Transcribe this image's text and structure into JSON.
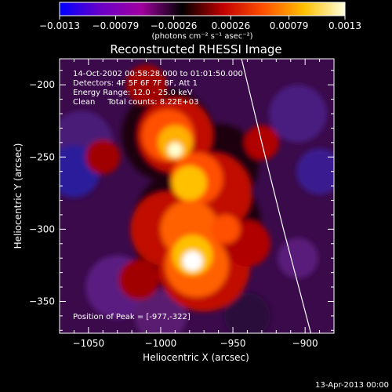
{
  "chart_data": {
    "type": "heatmap",
    "title": "Reconstructed RHESSI Image",
    "xlabel": "Heliocentric X (arcsec)",
    "ylabel": "Heliocentric Y (arcsec)",
    "xlim": [
      -1070,
      -880
    ],
    "ylim": [
      -372,
      -182
    ],
    "x_ticks": [
      -1050,
      -1000,
      -950,
      -900
    ],
    "y_ticks": [
      -200,
      -250,
      -300,
      -350
    ],
    "x_tick_labels": [
      "−1050",
      "−1000",
      "−950",
      "−900"
    ],
    "y_tick_labels": [
      "−200",
      "−250",
      "−300",
      "−350"
    ],
    "colorbar": {
      "range": [
        -0.0013,
        0.0013
      ],
      "ticks": [
        -0.0013,
        -0.00079,
        -0.00026,
        0.00026,
        0.00079,
        0.0013
      ],
      "tick_labels": [
        "−0.0013",
        "−0.00079",
        "−0.00026",
        "0.00026",
        "0.00079",
        "0.0013"
      ],
      "unit_label": "(photons cm⁻² s⁻¹ asec⁻²)",
      "colors": [
        "#0000ff",
        "#6a00c8",
        "#a000a0",
        "#000000",
        "#c00000",
        "#ff5000",
        "#ffc000",
        "#ffffe0"
      ]
    },
    "annotations": {
      "time": "14-Oct-2002 00:58:28.000 to 01:01:50.000",
      "detectors": "Detectors: 4F 5F 6F 7F 8F, Att 1",
      "energy": "Energy Range: 12.0 - 25.0 keV",
      "clean": "Clean     Total counts: 8.22E+03",
      "peak": "Position of Peak = [-977,-322]"
    },
    "peak": {
      "x": -977,
      "y": -322
    },
    "limb_curve": [
      [
        -944,
        -182
      ],
      [
        -930,
        -240
      ],
      [
        -915,
        -300
      ],
      [
        -896,
        -372
      ]
    ]
  },
  "footer": {
    "timestamp": "13-Apr-2013 00:00"
  }
}
